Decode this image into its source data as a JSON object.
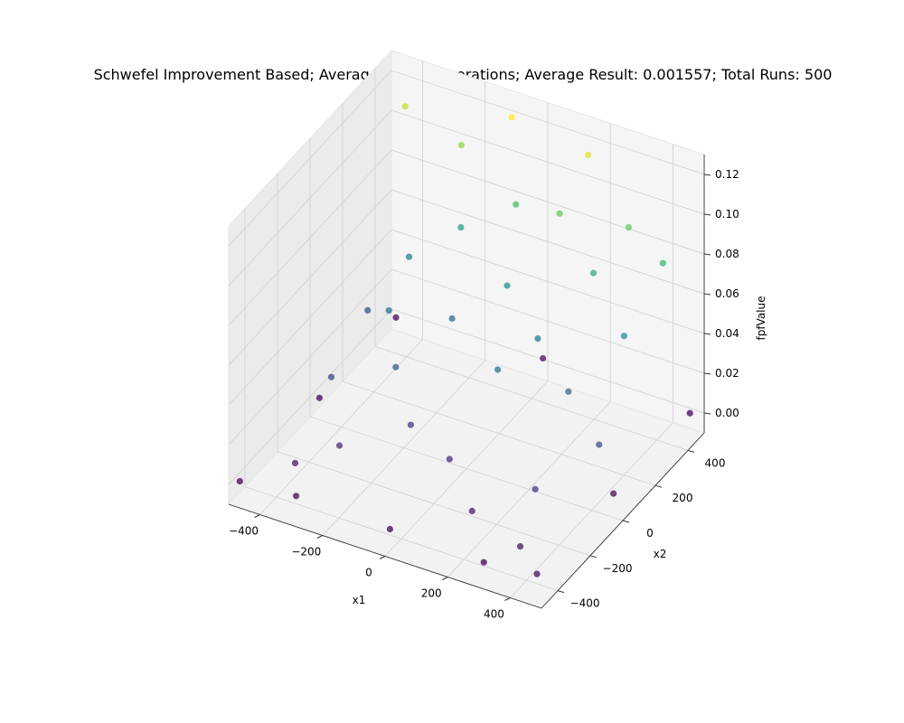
{
  "chart_data": {
    "type": "scatter",
    "title": "Schwefel Improvement Based; Average 28.93 generations; Average Result: 0.001557; Total Runs: 500",
    "xlabel": "x1",
    "ylabel": "x2",
    "zlabel": "fpfValue",
    "xlim": [
      -500,
      500
    ],
    "ylim": [
      -500,
      500
    ],
    "zlim": [
      -0.01,
      0.13
    ],
    "x_ticks": [
      "−400",
      "−200",
      "0",
      "200",
      "400"
    ],
    "y_ticks": [
      "−400",
      "−200",
      "0",
      "200",
      "400"
    ],
    "z_ticks": [
      "0.00",
      "0.02",
      "0.04",
      "0.06",
      "0.08",
      "0.10",
      "0.12"
    ],
    "x_tick_values": [
      -400,
      -200,
      0,
      200,
      400
    ],
    "y_tick_values": [
      -400,
      -200,
      0,
      200,
      400
    ],
    "z_tick_values": [
      0.0,
      0.02,
      0.04,
      0.06,
      0.08,
      0.1,
      0.12
    ],
    "grid": true,
    "colormap": "viridis",
    "marker_color_low": "#440154",
    "marker_color_high": "#fde725",
    "points": [
      [
        -480,
        -470,
        0.0
      ],
      [
        -300,
        -470,
        0.002
      ],
      [
        0,
        -470,
        0.001
      ],
      [
        300,
        -470,
        0.0
      ],
      [
        470,
        -470,
        0.003
      ],
      [
        -470,
        0,
        0.001
      ],
      [
        470,
        0,
        0.002
      ],
      [
        -470,
        470,
        0.0
      ],
      [
        0,
        470,
        0.004
      ],
      [
        470,
        470,
        0.001
      ],
      [
        -420,
        200,
        0.03
      ],
      [
        -380,
        -100,
        0.025
      ],
      [
        -350,
        320,
        0.05
      ],
      [
        -300,
        100,
        0.045
      ],
      [
        -250,
        -300,
        0.015
      ],
      [
        -200,
        350,
        0.07
      ],
      [
        -150,
        200,
        0.04
      ],
      [
        -100,
        -150,
        0.02
      ],
      [
        -50,
        400,
        0.085
      ],
      [
        0,
        250,
        0.06
      ],
      [
        50,
        -200,
        0.015
      ],
      [
        100,
        380,
        0.09
      ],
      [
        150,
        150,
        0.05
      ],
      [
        200,
        -350,
        0.01
      ],
      [
        250,
        300,
        0.075
      ],
      [
        300,
        50,
        0.04
      ],
      [
        350,
        -250,
        0.02
      ],
      [
        400,
        200,
        0.06
      ],
      [
        450,
        -50,
        0.03
      ],
      [
        -430,
        450,
        0.11
      ],
      [
        -250,
        450,
        0.1
      ],
      [
        -100,
        470,
        0.12
      ],
      [
        150,
        460,
        0.115
      ],
      [
        300,
        420,
        0.09
      ],
      [
        420,
        400,
        0.08
      ],
      [
        -200,
        -50,
        0.035
      ],
      [
        100,
        0,
        0.045
      ],
      [
        -350,
        -380,
        0.008
      ],
      [
        380,
        -400,
        0.006
      ]
    ]
  }
}
